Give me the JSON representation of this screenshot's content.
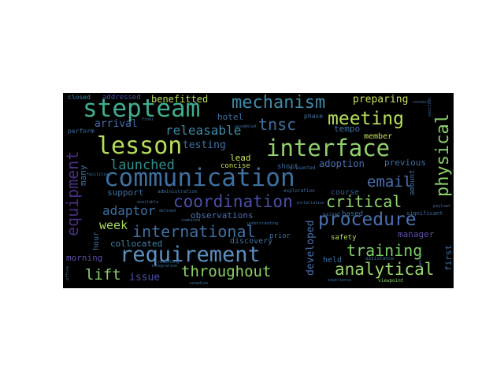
{
  "words": [
    {
      "text": "communication",
      "color": "#3e6fa0"
    },
    {
      "text": "requirement",
      "color": "#5a8fc0"
    },
    {
      "text": "interface",
      "color": "#8fd06a"
    },
    {
      "text": "lesson",
      "color": "#b5de5a"
    },
    {
      "text": "stepteam",
      "color": "#3fae8e"
    },
    {
      "text": "mechanism",
      "color": "#3e8aa8"
    },
    {
      "text": "meeting",
      "color": "#b8de5a"
    },
    {
      "text": "international",
      "color": "#3e6fa0"
    },
    {
      "text": "coordination",
      "color": "#4a4fa6"
    },
    {
      "text": "procedure",
      "color": "#4a6fb0"
    },
    {
      "text": "analytical",
      "color": "#9ad46a"
    },
    {
      "text": "throughout",
      "color": "#8ad06a"
    },
    {
      "text": "physical",
      "color": "#8ad06a"
    },
    {
      "text": "critical",
      "color": "#8fd66a"
    },
    {
      "text": "training",
      "color": "#7ccc66"
    },
    {
      "text": "launched",
      "color": "#2f8e8c"
    },
    {
      "text": "email",
      "color": "#4a6fb0"
    },
    {
      "text": "tnsc",
      "color": "#3e6fa0"
    },
    {
      "text": "equipment",
      "color": "#482f80"
    },
    {
      "text": "releasable",
      "color": "#3e8aa8"
    },
    {
      "text": "lift",
      "color": "#8ad06a"
    },
    {
      "text": "adaptor",
      "color": "#3e6fa0"
    },
    {
      "text": "week",
      "color": "#a8d860"
    },
    {
      "text": "arrival",
      "color": "#4a6fb0"
    },
    {
      "text": "testing",
      "color": "#3e6fa0"
    },
    {
      "text": "benefitted",
      "color": "#b8de5a"
    },
    {
      "text": "preparing",
      "color": "#c8e05a"
    },
    {
      "text": "developed",
      "color": "#4a6fb0"
    },
    {
      "text": "manager",
      "color": "#5a4fa6"
    },
    {
      "text": "adoption",
      "color": "#4a6fb0"
    },
    {
      "text": "hotel",
      "color": "#3e6fa0"
    },
    {
      "text": "issue",
      "color": "#4a4fa6"
    },
    {
      "text": "collocated",
      "color": "#3e8aa8"
    },
    {
      "text": "morning",
      "color": "#5a4fa6"
    },
    {
      "text": "observations",
      "color": "#4a6fb0"
    },
    {
      "text": "discovery",
      "color": "#3e6fa0"
    },
    {
      "text": "support",
      "color": "#3e6fa0"
    },
    {
      "text": "lead",
      "color": "#c8e05a"
    },
    {
      "text": "concise",
      "color": "#c8e05a"
    },
    {
      "text": "tempo",
      "color": "#3e6fa0"
    },
    {
      "text": "member",
      "color": "#c8e05a"
    },
    {
      "text": "previous",
      "color": "#3e6fa0"
    },
    {
      "text": "many",
      "color": "#3e6fa0"
    },
    {
      "text": "hour",
      "color": "#3e6fa0"
    },
    {
      "text": "course",
      "color": "#2f5f8e"
    },
    {
      "text": "based",
      "color": "#3e6fa0"
    },
    {
      "text": "safety",
      "color": "#b8de5a"
    },
    {
      "text": "held",
      "color": "#3e6fa0"
    },
    {
      "text": "first",
      "color": "#3e6fa0"
    },
    {
      "text": "short",
      "color": "#3e6fa0"
    },
    {
      "text": "amount",
      "color": "#3e6fa0"
    },
    {
      "text": "prior",
      "color": "#3e6fa0"
    },
    {
      "text": "addressed",
      "color": "#4a4fa6"
    },
    {
      "text": "closed",
      "color": "#3e8aa8"
    },
    {
      "text": "perform",
      "color": "#3e6fa0"
    },
    {
      "text": "phase",
      "color": "#3e6fa0"
    },
    {
      "text": "significant",
      "color": "#3e6fa0"
    },
    {
      "text": "viewpoint",
      "color": "#8ad06a"
    },
    {
      "text": "presented",
      "color": "#3e6fa0"
    },
    {
      "text": "exploration",
      "color": "#3e6fa0"
    },
    {
      "text": "administration",
      "color": "#3e6fa0"
    },
    {
      "text": "gained",
      "color": "#3e6fa0"
    },
    {
      "text": "assistance",
      "color": "#3e6fa0"
    },
    {
      "text": "canadian",
      "color": "#3e6fa0"
    },
    {
      "text": "integration",
      "color": "#3e6fa0"
    },
    {
      "text": "installation",
      "color": "#3e6fa0"
    },
    {
      "text": "combined",
      "color": "#3e6fa0"
    },
    {
      "text": "final",
      "color": "#3e6fa0"
    },
    {
      "text": "available",
      "color": "#3e6fa0"
    },
    {
      "text": "defined",
      "color": "#3e6fa0"
    },
    {
      "text": "understanding",
      "color": "#3e6fa0"
    },
    {
      "text": "office",
      "color": "#3e6fa0"
    },
    {
      "text": "assembled",
      "color": "#3e6fa0"
    },
    {
      "text": "resulting",
      "color": "#3e6fa0"
    },
    {
      "text": "experience",
      "color": "#3e6fa0"
    },
    {
      "text": "connect",
      "color": "#3e6fa0"
    },
    {
      "text": "payload",
      "color": "#3e6fa0"
    },
    {
      "text": "agency",
      "color": "#3e6fa0"
    },
    {
      "text": "position",
      "color": "#3e6fa0"
    },
    {
      "text": "facilities",
      "color": "#3e6fa0"
    }
  ]
}
